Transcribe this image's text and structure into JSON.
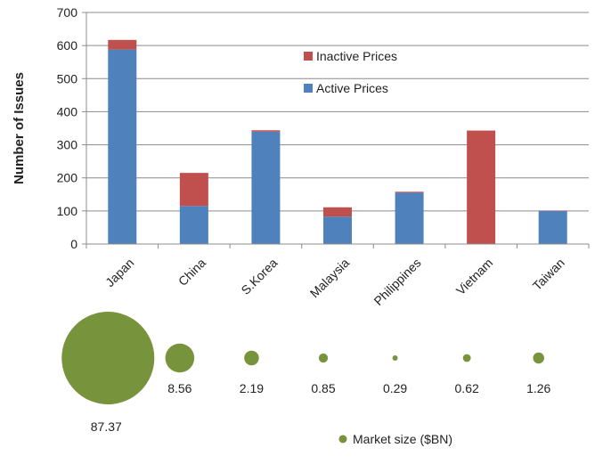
{
  "chart_data": {
    "type": "bar",
    "stacked": true,
    "categories": [
      "Japan",
      "China",
      "S.Korea",
      "Malaysia",
      "Philippines",
      "Vietnam",
      "Taiwan"
    ],
    "series": [
      {
        "name": "Active Prices",
        "color": "#4F81BD",
        "values": [
          588,
          115,
          340,
          83,
          155,
          0,
          100
        ]
      },
      {
        "name": "Inactive Prices",
        "color": "#C0504D",
        "values": [
          29,
          100,
          4,
          28,
          3,
          343,
          1
        ]
      }
    ],
    "xlabel": "",
    "ylabel": "Number of Issues",
    "ylim": [
      0,
      700
    ],
    "yticks": [
      0,
      100,
      200,
      300,
      400,
      500,
      600,
      700
    ],
    "grid": true,
    "legend": {
      "position": "top-right",
      "entries": [
        "Inactive Prices",
        "Active Prices"
      ]
    },
    "bubbles": {
      "name": "Market size ($BN)",
      "color": "#77933C",
      "values": [
        87.37,
        8.56,
        2.19,
        0.85,
        0.29,
        0.62,
        1.26
      ],
      "labels": [
        "87.37",
        "8.56",
        "2.19",
        "0.85",
        "0.29",
        "0.62",
        "1.26"
      ]
    }
  }
}
